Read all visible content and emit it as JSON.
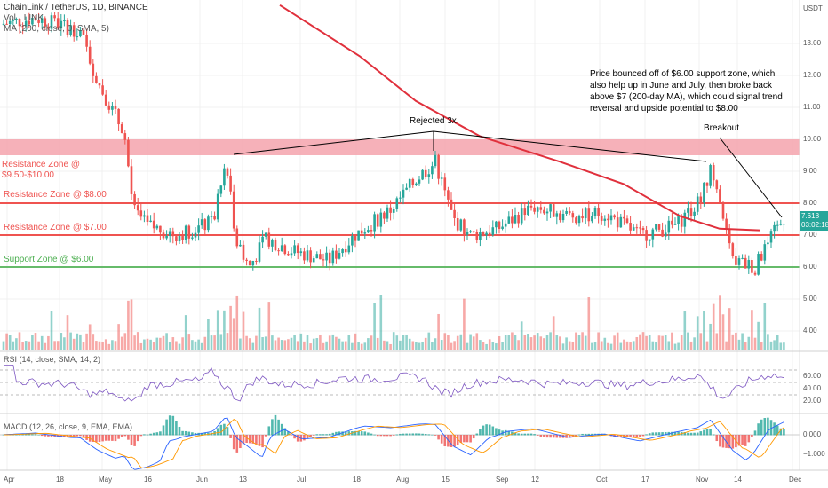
{
  "header": {
    "symbol_line": "ChainLink / TetherUS, 1D, BINANCE",
    "vol_line": "Vol · LINK",
    "ma_line": "MA (200, close, 0, SMA, 5)",
    "currency": "USDT"
  },
  "zones": [
    {
      "label": "Resistance Zone @\n$9.50-$10.00",
      "color": "#ef5350"
    },
    {
      "label": "Resistance Zone @ $8.00",
      "color": "#ef5350"
    },
    {
      "label": "Resistance Zone @ $7.00",
      "color": "#ef5350"
    },
    {
      "label": "Support Zone @ $6.00",
      "color": "#4caf50"
    }
  ],
  "annotations": {
    "summary": "Price bounced off of $6.00 support zone, which also help up in June and July, then broke back above $7 (200-day MA), which could signal trend reversal and upside potential to $8.00",
    "rejected": "Rejected 3x",
    "breakout": "Breakout"
  },
  "price_tag": {
    "value": "7.618",
    "countdown": "03:02:18"
  },
  "indicators": {
    "rsi_label": "RSI (14, close, SMA, 14, 2)",
    "macd_label": "MACD (12, 26, close, 9, EMA, EMA)"
  },
  "colors": {
    "up": "#26a69a",
    "down": "#ef5350",
    "ma": "#e0303c",
    "rsi": "#7e57c2",
    "macd": "#2962ff",
    "signal": "#ff9800"
  },
  "chart_data": {
    "type": "candlestick",
    "y_axis_price": [
      4,
      5,
      6,
      7,
      8,
      9,
      10,
      11,
      12,
      13
    ],
    "y_axis_rsi": [
      20,
      40,
      60
    ],
    "y_axis_macd": [
      -1,
      0
    ],
    "x_ticks": [
      "Apr",
      "18",
      "May",
      "16",
      "Jun",
      "13",
      "Jul",
      "18",
      "Aug",
      "15",
      "Sep",
      "12",
      "Oct",
      "17",
      "Nov",
      "14",
      "Dec"
    ],
    "zones": [
      [
        9.5,
        10.0
      ],
      [
        8.0,
        8.0
      ],
      [
        7.0,
        7.0
      ],
      [
        6.0,
        6.0
      ]
    ],
    "last_price": 7.618,
    "ma200_points": [
      [
        0.35,
        14.2
      ],
      [
        0.45,
        12.6
      ],
      [
        0.52,
        11.2
      ],
      [
        0.6,
        10.1
      ],
      [
        0.7,
        9.3
      ],
      [
        0.78,
        8.6
      ],
      [
        0.85,
        7.6
      ],
      [
        0.9,
        7.2
      ],
      [
        0.95,
        7.15
      ]
    ]
  }
}
